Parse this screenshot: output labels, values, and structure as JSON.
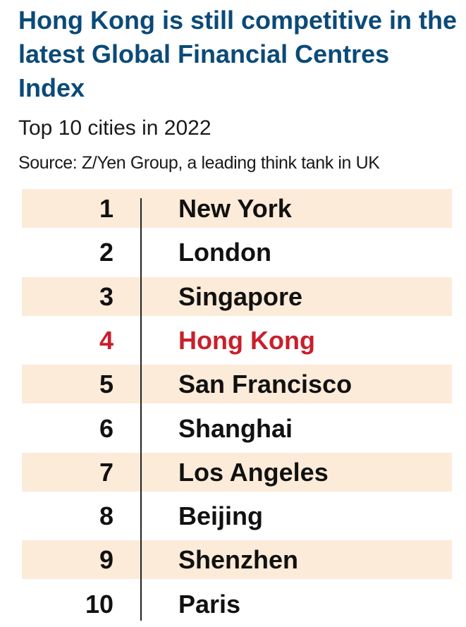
{
  "header": {
    "title": "Hong Kong is still competitive in the latest Global Financial Centres Index",
    "subtitle": "Top 10 cities in 2022",
    "source": "Source: Z/Yen Group, a leading think tank in UK"
  },
  "colors": {
    "title": "#0b4a78",
    "text": "#111111",
    "highlight": "#c8202b",
    "stripe": "#fcebd8",
    "background": "#ffffff"
  },
  "chart_data": {
    "type": "table",
    "title": "Hong Kong is still competitive in the latest Global Financial Centres Index",
    "subtitle": "Top 10 cities in 2022",
    "columns": [
      "",
      ""
    ],
    "highlighted": "Hong Kong",
    "rows": [
      {
        "rank": "1",
        "city": "New York"
      },
      {
        "rank": "2",
        "city": "London"
      },
      {
        "rank": "3",
        "city": "Singapore"
      },
      {
        "rank": "4",
        "city": "Hong Kong"
      },
      {
        "rank": "5",
        "city": "San Francisco"
      },
      {
        "rank": "6",
        "city": "Shanghai"
      },
      {
        "rank": "7",
        "city": "Los Angeles"
      },
      {
        "rank": "8",
        "city": "Beijing"
      },
      {
        "rank": "9",
        "city": "Shenzhen"
      },
      {
        "rank": "10",
        "city": "Paris"
      }
    ]
  }
}
